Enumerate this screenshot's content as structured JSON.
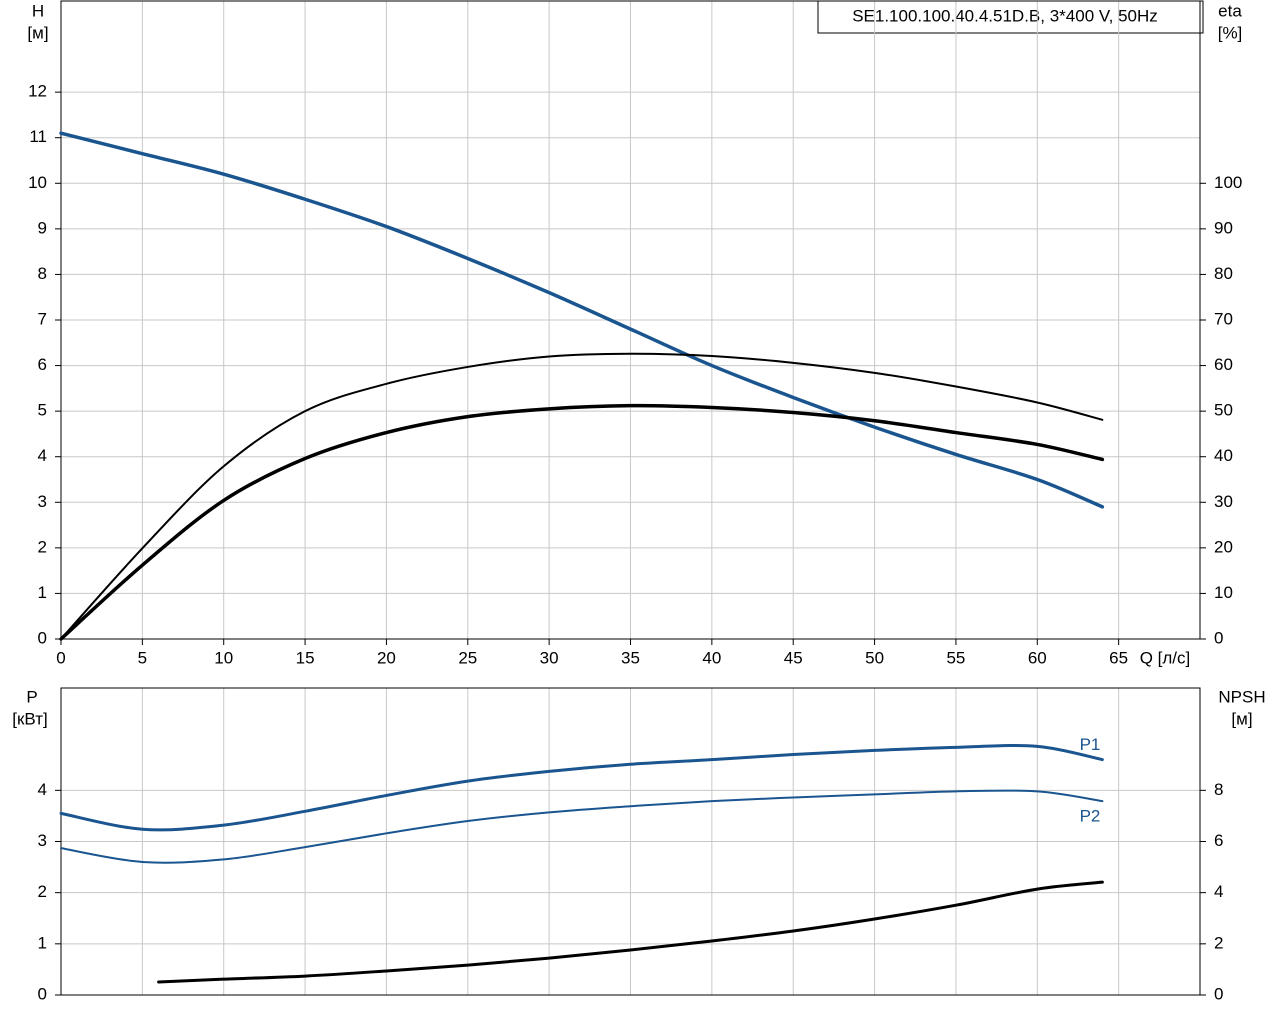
{
  "chart_data": [
    {
      "type": "line",
      "title": "SE1.100.100.40.4.51D.B, 3*400 V, 50Hz",
      "ylabel": "H",
      "yunit": "[м]",
      "y2label": "eta",
      "y2unit": "[%]",
      "xlabel": "Q [л/с]",
      "xlim": [
        0,
        70
      ],
      "xticks": [
        0,
        5,
        10,
        15,
        20,
        25,
        30,
        35,
        40,
        45,
        50,
        55,
        60,
        65
      ],
      "ylim": [
        0,
        14
      ],
      "yticks": [
        0,
        1,
        2,
        3,
        4,
        5,
        6,
        7,
        8,
        9,
        10,
        11,
        12
      ],
      "y2lim": [
        0,
        140
      ],
      "y2ticks": [
        0,
        10,
        20,
        30,
        40,
        50,
        60,
        70,
        80,
        90,
        100
      ],
      "grid": true,
      "series": [
        {
          "color": "#1a5590",
          "x": [
            0,
            5,
            10,
            15,
            20,
            25,
            30,
            35,
            40,
            45,
            50,
            55,
            60,
            64
          ],
          "values": [
            11.1,
            10.65,
            10.2,
            9.65,
            9.05,
            8.35,
            7.6,
            6.8,
            6.0,
            5.3,
            4.65,
            4.05,
            3.5,
            2.9
          ]
        },
        {
          "color": "#000000",
          "axis": "y2",
          "x": [
            0,
            5,
            10,
            15,
            20,
            25,
            30,
            35,
            40,
            45,
            50,
            55,
            60,
            64
          ],
          "values": [
            0,
            19.9,
            37.9,
            50,
            56,
            59.7,
            62,
            62.6,
            62.1,
            60.6,
            58.4,
            55.4,
            51.9,
            48.1
          ]
        },
        {
          "color": "#000000",
          "axis": "y2",
          "x": [
            0,
            5,
            10,
            15,
            20,
            25,
            30,
            35,
            40,
            45,
            50,
            55,
            60,
            64
          ],
          "values": [
            0,
            16.2,
            30.4,
            39.6,
            45.3,
            48.8,
            50.5,
            51.2,
            50.8,
            49.7,
            47.9,
            45.3,
            42.7,
            39.4
          ]
        }
      ]
    },
    {
      "type": "line",
      "ylabel": "P",
      "yunit": "[кВт]",
      "y2label": "NPSH",
      "y2unit": "[м]",
      "ylim": [
        0,
        6
      ],
      "yticks": [
        0,
        1,
        2,
        3,
        4
      ],
      "y2lim": [
        0,
        12
      ],
      "y2ticks": [
        0,
        2,
        4,
        6,
        8
      ],
      "grid": true,
      "series": [
        {
          "name": "P1",
          "color": "#1a5590",
          "x": [
            0,
            5,
            10,
            15,
            20,
            25,
            30,
            35,
            40,
            45,
            50,
            55,
            60,
            64
          ],
          "values": [
            3.55,
            3.24,
            3.32,
            3.59,
            3.9,
            4.18,
            4.37,
            4.51,
            4.6,
            4.7,
            4.78,
            4.84,
            4.86,
            4.6
          ]
        },
        {
          "name": "P2",
          "color": "#1a5590",
          "x": [
            0,
            5,
            10,
            15,
            20,
            25,
            30,
            35,
            40,
            45,
            50,
            55,
            60,
            64
          ],
          "values": [
            2.87,
            2.6,
            2.65,
            2.89,
            3.16,
            3.4,
            3.57,
            3.69,
            3.79,
            3.86,
            3.92,
            3.98,
            3.98,
            3.79
          ]
        },
        {
          "color": "#000000",
          "axis": "y2",
          "x": [
            6,
            10,
            15,
            20,
            25,
            30,
            35,
            40,
            45,
            50,
            55,
            60,
            64
          ],
          "values": [
            0.51,
            0.62,
            0.74,
            0.94,
            1.17,
            1.44,
            1.76,
            2.11,
            2.5,
            2.97,
            3.51,
            4.14,
            4.41
          ]
        }
      ]
    }
  ]
}
